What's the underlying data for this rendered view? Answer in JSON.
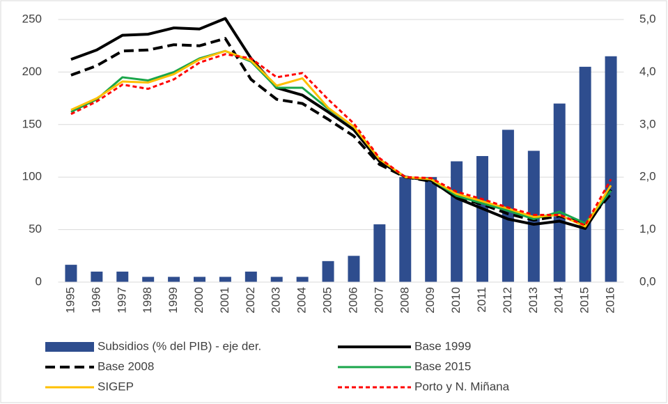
{
  "chart_data": {
    "type": "bar",
    "categories": [
      "1995",
      "1996",
      "1997",
      "1998",
      "1999",
      "2000",
      "2001",
      "2002",
      "2003",
      "2004",
      "2005",
      "2006",
      "2007",
      "2008",
      "2009",
      "2010",
      "2011",
      "2012",
      "2013",
      "2014",
      "2015",
      "2016"
    ],
    "series": [
      {
        "name": "Subsidios (% del PIB) - eje der.",
        "type": "bar",
        "axis": "y2",
        "color": "#2e4d8e",
        "values": [
          0.33,
          0.2,
          0.2,
          0.1,
          0.1,
          0.1,
          0.1,
          0.2,
          0.1,
          0.1,
          0.4,
          0.5,
          1.1,
          2.0,
          2.0,
          2.3,
          2.4,
          2.9,
          2.5,
          3.4,
          4.1,
          4.3
        ]
      },
      {
        "name": "Base 1999",
        "type": "line",
        "color": "#000000",
        "style": "solid",
        "values": [
          212,
          221,
          235,
          236,
          242,
          241,
          251,
          213,
          185,
          178,
          162,
          145,
          115,
          100,
          97,
          80,
          70,
          60,
          55,
          58,
          51,
          88
        ]
      },
      {
        "name": "Base 2008",
        "type": "line",
        "color": "#000000",
        "style": "dashed",
        "values": [
          197,
          206,
          220,
          221,
          226,
          225,
          232,
          193,
          174,
          170,
          155,
          139,
          112,
          100,
          96,
          81,
          74,
          65,
          59,
          63,
          55,
          84
        ]
      },
      {
        "name": "Base 2015",
        "type": "line",
        "color": "#1aa64a",
        "style": "solid",
        "values": [
          162,
          174,
          195,
          192,
          200,
          213,
          220,
          210,
          185,
          185,
          165,
          148,
          117,
          100,
          98,
          82,
          75,
          68,
          60,
          67,
          56,
          87
        ]
      },
      {
        "name": "SIGEP",
        "type": "line",
        "color": "#ffc000",
        "style": "solid",
        "values": [
          164,
          175,
          191,
          190,
          198,
          212,
          220,
          211,
          187,
          194,
          166,
          148,
          117,
          100,
          98,
          84,
          77,
          70,
          62,
          64,
          53,
          92
        ]
      },
      {
        "name": "Porto y N. Miñana",
        "type": "line",
        "color": "#ff0000",
        "style": "dotted",
        "values": [
          160,
          172,
          188,
          184,
          193,
          209,
          217,
          213,
          195,
          199,
          174,
          151,
          118,
          100,
          99,
          86,
          79,
          71,
          64,
          64,
          54,
          98
        ]
      }
    ],
    "ylim": [
      0,
      250
    ],
    "yticks": [
      0,
      50,
      100,
      150,
      200,
      250
    ],
    "y2lim": [
      0,
      5
    ],
    "y2ticks": [
      {
        "value": 0,
        "label": "0,0"
      },
      {
        "value": 1,
        "label": "1,0"
      },
      {
        "value": 2,
        "label": "2,0"
      },
      {
        "value": 3,
        "label": "3,0"
      },
      {
        "value": 4,
        "label": "4,0"
      },
      {
        "value": 5,
        "label": "5,0"
      }
    ],
    "grid": true
  }
}
